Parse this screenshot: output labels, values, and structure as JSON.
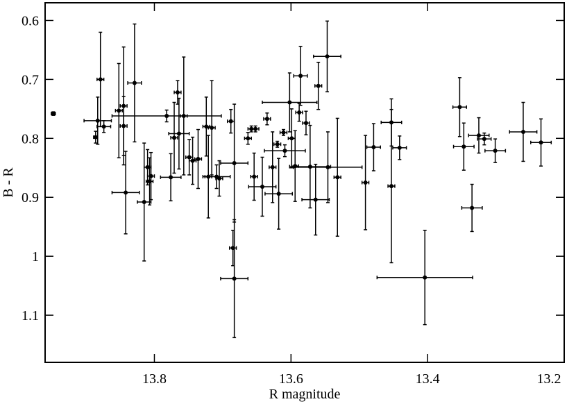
{
  "chart_data": {
    "type": "scatter",
    "x_label": "R magnitude",
    "y_label": "B - R",
    "xlim": [
      13.96,
      13.2
    ],
    "ylim": [
      0.57,
      1.18
    ],
    "xticks": [
      13.8,
      13.6,
      13.4,
      13.2
    ],
    "yticks": [
      0.6,
      0.7,
      0.8,
      0.9,
      1,
      1.1
    ],
    "series": [
      {
        "color": "#000000",
        "x": [
          13.948,
          13.886,
          13.879,
          13.883,
          13.874,
          13.852,
          13.845,
          13.845,
          13.842,
          13.829,
          13.782,
          13.815,
          13.81,
          13.807,
          13.805,
          13.776,
          13.771,
          13.766,
          13.764,
          13.757,
          13.749,
          13.744,
          13.736,
          13.724,
          13.721,
          13.716,
          13.709,
          13.705,
          13.688,
          13.683,
          13.685,
          13.683,
          13.663,
          13.658,
          13.652,
          13.654,
          13.642,
          13.635,
          13.627,
          13.62,
          13.618,
          13.611,
          13.609,
          13.602,
          13.599,
          13.594,
          13.586,
          13.588,
          13.578,
          13.572,
          13.564,
          13.56,
          13.547,
          13.546,
          13.532,
          13.491,
          13.479,
          13.453,
          13.453,
          13.441,
          13.404,
          13.353,
          13.347,
          13.335,
          13.325,
          13.317,
          13.301,
          13.26,
          13.234
        ],
        "values": [
          0.758,
          0.798,
          0.7,
          0.77,
          0.78,
          0.753,
          0.745,
          0.779,
          0.892,
          0.706,
          0.762,
          0.908,
          0.849,
          0.873,
          0.864,
          0.866,
          0.799,
          0.722,
          0.792,
          0.762,
          0.832,
          0.838,
          0.835,
          0.78,
          0.865,
          0.782,
          0.865,
          0.868,
          0.771,
          0.842,
          0.986,
          1.038,
          0.8,
          0.784,
          0.784,
          0.865,
          0.882,
          0.767,
          0.849,
          0.81,
          0.894,
          0.79,
          0.821,
          0.739,
          0.8,
          0.847,
          0.694,
          0.756,
          0.774,
          0.848,
          0.904,
          0.711,
          0.661,
          0.849,
          0.866,
          0.875,
          0.815,
          0.773,
          0.881,
          0.816,
          1.036,
          0.747,
          0.814,
          0.918,
          0.795,
          0.801,
          0.821,
          0.789,
          0.807
        ],
        "xerr": [
          0.003,
          0.003,
          0.005,
          0.02,
          0.01,
          0.005,
          0.005,
          0.005,
          0.02,
          0.01,
          0.08,
          0.01,
          0.005,
          0.005,
          0.005,
          0.015,
          0.005,
          0.005,
          0.015,
          0.005,
          0.005,
          0.005,
          0.005,
          0.005,
          0.005,
          0.005,
          0.02,
          0.005,
          0.005,
          0.02,
          0.005,
          0.02,
          0.005,
          0.005,
          0.005,
          0.005,
          0.02,
          0.005,
          0.005,
          0.005,
          0.02,
          0.005,
          0.03,
          0.04,
          0.005,
          0.005,
          0.01,
          0.005,
          0.005,
          0.03,
          0.02,
          0.005,
          0.02,
          0.05,
          0.005,
          0.005,
          0.01,
          0.015,
          0.005,
          0.01,
          0.07,
          0.01,
          0.015,
          0.015,
          0.015,
          0.01,
          0.015,
          0.02,
          0.015
        ],
        "yerr": [
          0.003,
          0.01,
          0.08,
          0.04,
          0.01,
          0.08,
          0.1,
          0.05,
          0.07,
          0.1,
          0.01,
          0.1,
          0.03,
          0.04,
          0.04,
          0.04,
          0.06,
          0.02,
          0.06,
          0.1,
          0.03,
          0.04,
          0.05,
          0.05,
          0.07,
          0.08,
          0.02,
          0.03,
          0.02,
          0.1,
          0.03,
          0.1,
          0.01,
          0.005,
          0.005,
          0.04,
          0.05,
          0.01,
          0.06,
          0.005,
          0.06,
          0.005,
          0.01,
          0.05,
          0.05,
          0.06,
          0.05,
          0.015,
          0.02,
          0.07,
          0.06,
          0.04,
          0.06,
          0.06,
          0.1,
          0.08,
          0.04,
          0.04,
          0.13,
          0.02,
          0.08,
          0.05,
          0.04,
          0.04,
          0.03,
          0.01,
          0.02,
          0.05,
          0.04
        ]
      }
    ]
  }
}
